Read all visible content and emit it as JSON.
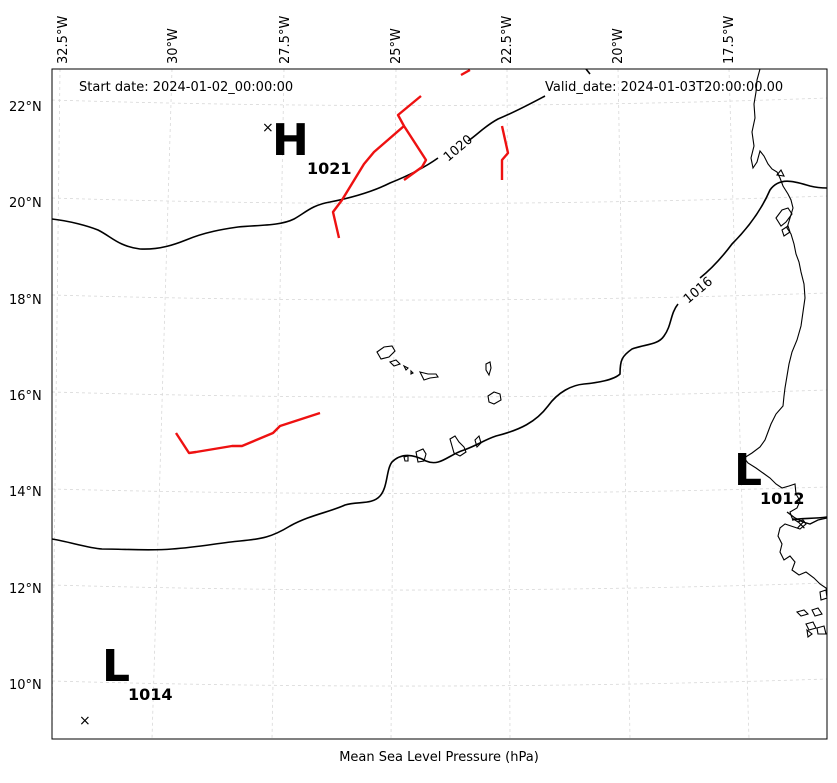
{
  "map": {
    "start_date": "Start date: 2024-01-02_00:00:00",
    "valid_date": "Valid_date: 2024-01-03T20:00:00.00",
    "caption": "Mean Sea Level Pressure (hPa)",
    "lon_labels": [
      "32.5°W",
      "30°W",
      "27.5°W",
      "25°W",
      "22.5°W",
      "20°W",
      "17.5°W"
    ],
    "lat_labels": [
      "22°N",
      "20°N",
      "18°N",
      "16°N",
      "14°N",
      "12°N",
      "10°N"
    ],
    "contour_labels": [
      "1020",
      "1016"
    ],
    "pressure_centers": [
      {
        "type": "H",
        "value": "1021"
      },
      {
        "type": "L",
        "value": "1012"
      },
      {
        "type": "L",
        "value": "1014"
      }
    ],
    "colors": {
      "isobar": "#000000",
      "front": "#ee1111",
      "grid": "#cccccc",
      "coast": "#000000"
    }
  }
}
